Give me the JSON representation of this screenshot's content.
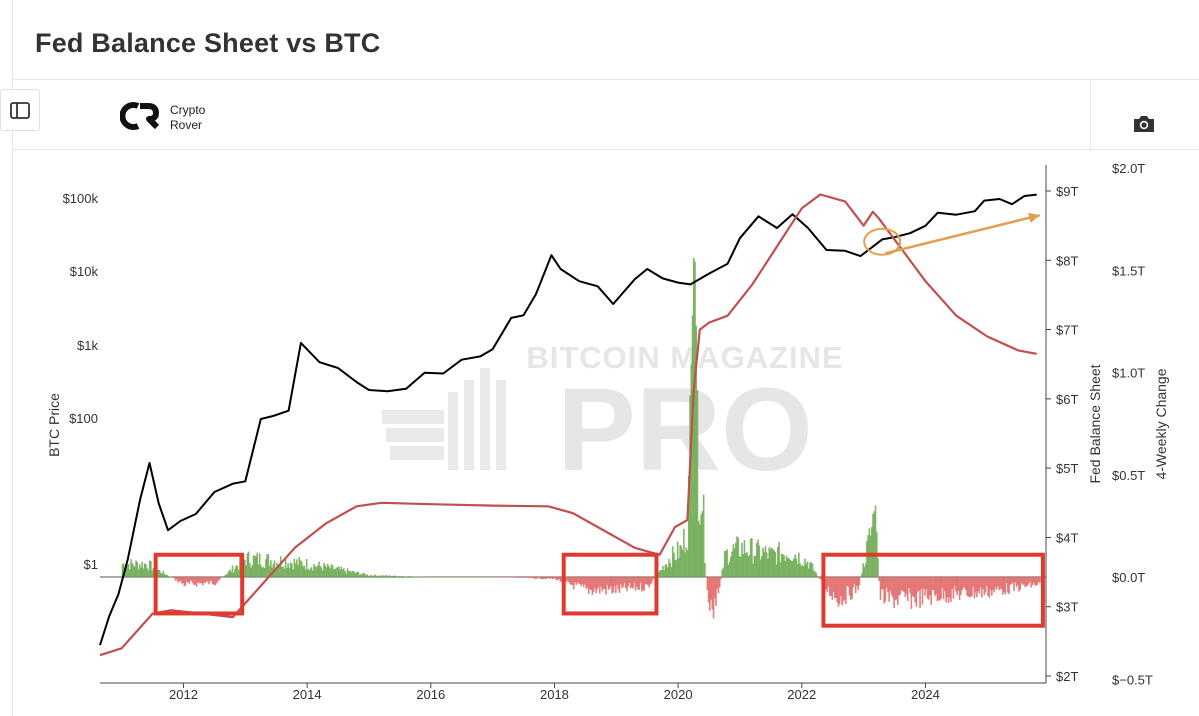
{
  "header": {
    "title": "Fed Balance Sheet vs BTC"
  },
  "toolbar": {
    "logo_line1": "Crypto",
    "logo_line2": "Rover",
    "sidebar_icon": "sidebar-toggle-icon",
    "camera_icon": "camera-icon"
  },
  "watermark": {
    "line1": "BITCOIN MAGAZINE",
    "line2": "PRO"
  },
  "chart_data": {
    "type": "line",
    "title": "Fed Balance Sheet vs BTC",
    "x_axis": {
      "ticks": [
        "2012",
        "2014",
        "2016",
        "2018",
        "2020",
        "2022",
        "2024"
      ],
      "range": [
        2010.65,
        2025.95
      ]
    },
    "y_axes": [
      {
        "id": "btc",
        "label": "BTC Price",
        "scale": "log",
        "ticks": [
          "$1",
          "$100",
          "$1k",
          "$10k",
          "$100k"
        ]
      },
      {
        "id": "fed",
        "label": "Fed Balance Sheet",
        "unit": "T",
        "range": [
          2,
          9.2
        ],
        "ticks": [
          "$2T",
          "$3T",
          "$4T",
          "$5T",
          "$6T",
          "$7T",
          "$8T",
          "$9T"
        ]
      },
      {
        "id": "change",
        "label": "4-Weekly Change",
        "unit": "T",
        "range": [
          -0.5,
          2.0
        ],
        "ticks": [
          "$−0.5T",
          "$0.0T",
          "$0.5T",
          "$1.0T",
          "$1.5T",
          "$2.0T"
        ]
      }
    ],
    "series": [
      {
        "axis": "btc",
        "color": "#000000",
        "x": [
          2010.65,
          2010.8,
          2010.95,
          2011.1,
          2011.3,
          2011.45,
          2011.6,
          2011.75,
          2011.95,
          2012.2,
          2012.5,
          2012.8,
          2013.0,
          2013.25,
          2013.45,
          2013.7,
          2013.9,
          2014.2,
          2014.5,
          2014.8,
          2015.0,
          2015.3,
          2015.6,
          2015.9,
          2016.2,
          2016.5,
          2016.8,
          2017.0,
          2017.3,
          2017.5,
          2017.7,
          2017.95,
          2018.1,
          2018.4,
          2018.7,
          2018.95,
          2019.3,
          2019.5,
          2019.75,
          2020.0,
          2020.2,
          2020.5,
          2020.8,
          2021.0,
          2021.3,
          2021.6,
          2021.85,
          2022.1,
          2022.4,
          2022.7,
          2022.95,
          2023.3,
          2023.5,
          2023.75,
          2024.0,
          2024.2,
          2024.5,
          2024.8,
          2024.95,
          2025.2,
          2025.4,
          2025.6,
          2025.8
        ],
        "values": [
          0.08,
          0.2,
          0.4,
          1.2,
          8,
          25,
          7,
          3,
          4,
          5,
          10,
          13,
          14,
          100,
          110,
          130,
          1100,
          600,
          500,
          320,
          250,
          240,
          260,
          430,
          420,
          650,
          720,
          900,
          2400,
          2600,
          5000,
          17000,
          11000,
          7500,
          6400,
          3700,
          8000,
          11000,
          8200,
          7200,
          6800,
          9500,
          13000,
          29000,
          58000,
          40000,
          62000,
          40000,
          20000,
          19500,
          16500,
          28000,
          30000,
          34000,
          43000,
          65000,
          61000,
          68000,
          95000,
          100000,
          85000,
          110000,
          115000
        ]
      },
      {
        "axis": "fed",
        "color": "#c0504d",
        "x": [
          2010.65,
          2011.0,
          2011.5,
          2011.8,
          2012.3,
          2012.8,
          2013.3,
          2013.8,
          2014.3,
          2014.8,
          2015.2,
          2016.0,
          2017.0,
          2017.9,
          2018.3,
          2018.8,
          2019.3,
          2019.7,
          2019.95,
          2020.15,
          2020.25,
          2020.35,
          2020.5,
          2020.8,
          2021.2,
          2021.6,
          2022.0,
          2022.3,
          2022.7,
          2023.0,
          2023.15,
          2023.25,
          2023.5,
          2024.0,
          2024.5,
          2025.0,
          2025.5,
          2025.8
        ],
        "values": [
          2.3,
          2.4,
          2.9,
          2.95,
          2.9,
          2.85,
          3.35,
          3.85,
          4.2,
          4.45,
          4.5,
          4.48,
          4.46,
          4.45,
          4.35,
          4.1,
          3.85,
          3.75,
          4.15,
          4.25,
          6.1,
          7.0,
          7.1,
          7.2,
          7.65,
          8.2,
          8.75,
          8.95,
          8.85,
          8.5,
          8.7,
          8.6,
          8.3,
          7.7,
          7.2,
          6.9,
          6.7,
          6.65
        ]
      }
    ],
    "bars": {
      "axis": "change",
      "positive_color": "#6aa84f",
      "negative_color": "#e06666",
      "x": [
        2011.4,
        2012.0,
        2012.5,
        2013.0,
        2013.5,
        2014.0,
        2014.5,
        2015.0,
        2016.0,
        2017.0,
        2018.0,
        2018.5,
        2019.0,
        2019.5,
        2019.85,
        2020.05,
        2020.15,
        2020.25,
        2020.32,
        2020.38,
        2020.45,
        2020.55,
        2020.75,
        2021.0,
        2021.5,
        2021.8,
        2022.1,
        2022.4,
        2022.6,
        2022.9,
        2023.18,
        2023.25,
        2023.4,
        2023.8,
        2024.2,
        2024.6,
        2025.0,
        2025.4,
        2025.8
      ],
      "values": [
        0.07,
        -0.04,
        -0.03,
        0.1,
        0.09,
        0.07,
        0.04,
        0.01,
        0.0,
        0.0,
        -0.01,
        -0.07,
        -0.07,
        -0.05,
        0.1,
        0.15,
        0.3,
        1.7,
        0.6,
        0.45,
        -0.08,
        -0.25,
        0.12,
        0.16,
        0.12,
        0.14,
        0.08,
        -0.07,
        -0.12,
        -0.06,
        0.35,
        -0.1,
        -0.12,
        -0.12,
        -0.1,
        -0.09,
        -0.08,
        -0.06,
        -0.04
      ]
    },
    "annotations": [
      {
        "type": "box",
        "x": [
          2011.55,
          2012.95
        ],
        "y": [
          -0.1,
          0.06
        ]
      },
      {
        "type": "box",
        "x": [
          2018.15,
          2019.65
        ],
        "y": [
          -0.1,
          0.06
        ]
      },
      {
        "type": "box",
        "x": [
          2022.35,
          2025.9
        ],
        "y": [
          -0.16,
          0.06
        ]
      },
      {
        "type": "circle",
        "x": 2023.3,
        "y_btc": 26000
      },
      {
        "type": "arrow",
        "from": [
          2023.35,
          18000
        ],
        "to": [
          2025.85,
          60000
        ]
      }
    ]
  }
}
